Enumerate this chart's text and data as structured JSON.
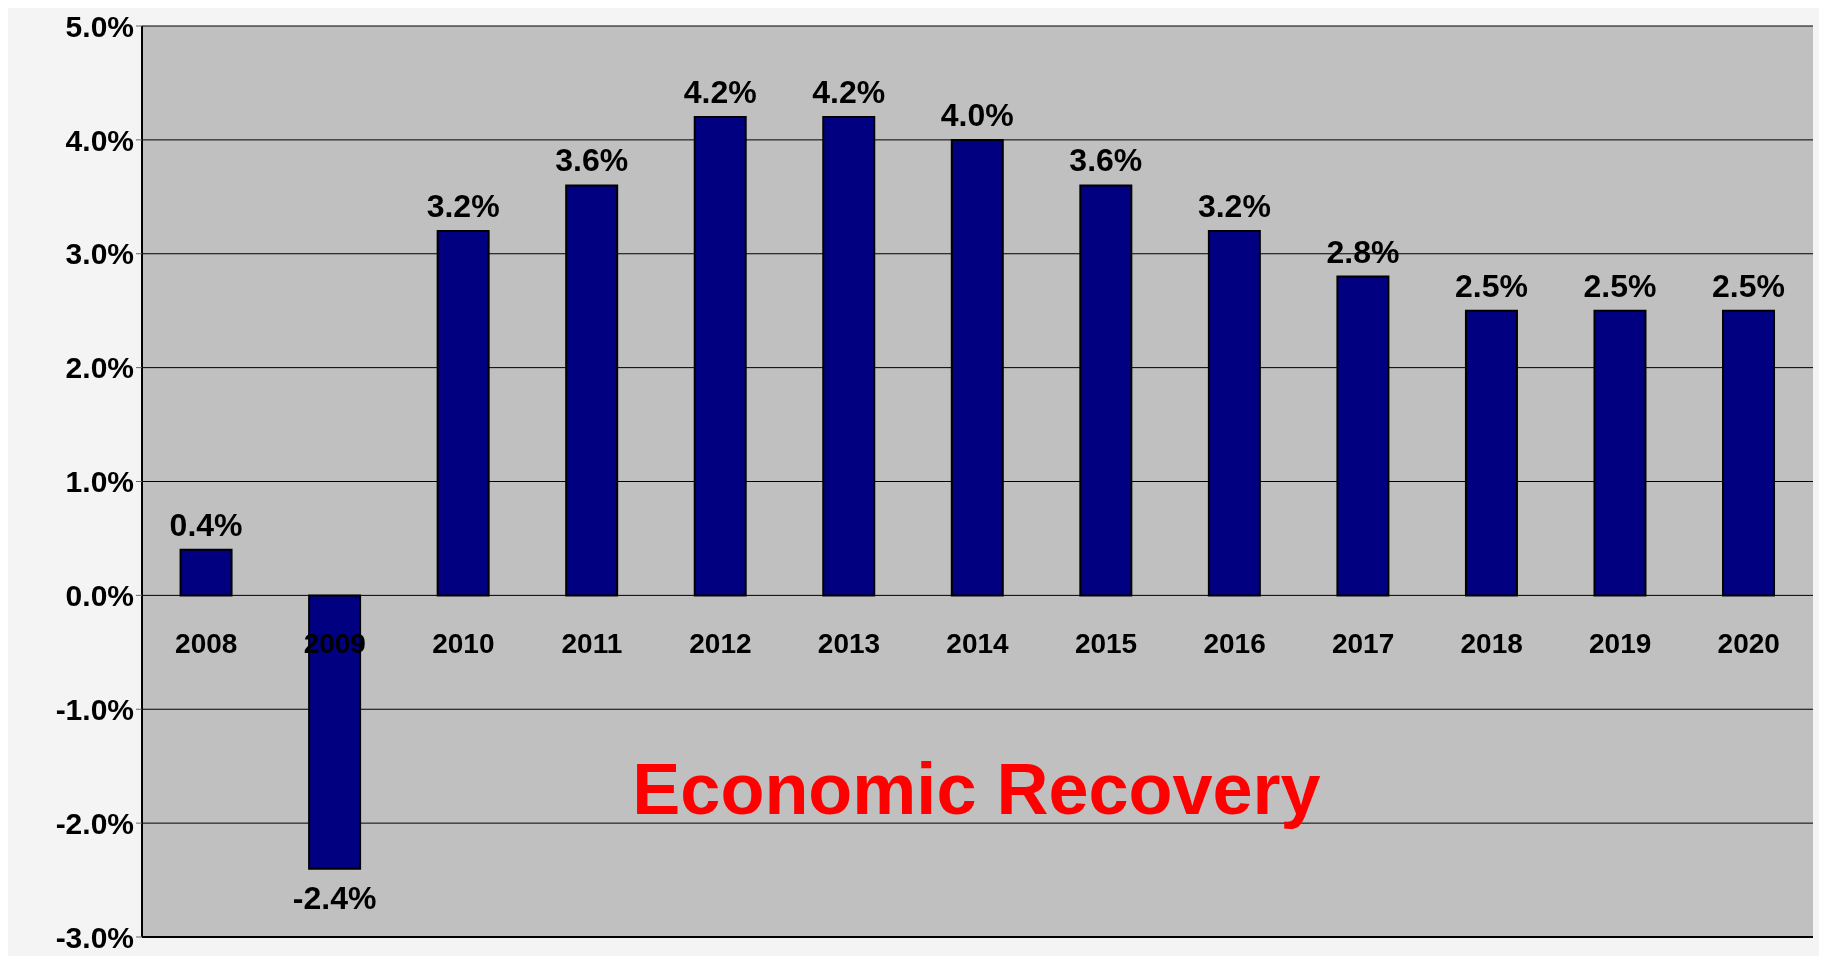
{
  "chart_data": {
    "type": "bar",
    "categories": [
      "2008",
      "2009",
      "2010",
      "2011",
      "2012",
      "2013",
      "2014",
      "2015",
      "2016",
      "2017",
      "2018",
      "2019",
      "2020"
    ],
    "values": [
      0.4,
      -2.4,
      3.2,
      3.6,
      4.2,
      4.2,
      4.0,
      3.6,
      3.2,
      2.8,
      2.5,
      2.5,
      2.5
    ],
    "value_labels": [
      "0.4%",
      "-2.4%",
      "3.2%",
      "3.6%",
      "4.2%",
      "4.2%",
      "4.0%",
      "3.6%",
      "3.2%",
      "2.8%",
      "2.5%",
      "2.5%",
      "2.5%"
    ],
    "color": "#000080",
    "ylim": [
      -3,
      5
    ],
    "yticks": [
      {
        "value": -3,
        "label": "-3.0%"
      },
      {
        "value": -2,
        "label": "-2.0%"
      },
      {
        "value": -1,
        "label": "-1.0%"
      },
      {
        "value": 0,
        "label": "0.0%"
      },
      {
        "value": 1,
        "label": "1.0%"
      },
      {
        "value": 2,
        "label": "2.0%"
      },
      {
        "value": 3,
        "label": "3.0%"
      },
      {
        "value": 4,
        "label": "4.0%"
      },
      {
        "value": 5,
        "label": "5.0%"
      }
    ],
    "grid": "y",
    "annotations": [
      "Economic Recovery"
    ]
  }
}
